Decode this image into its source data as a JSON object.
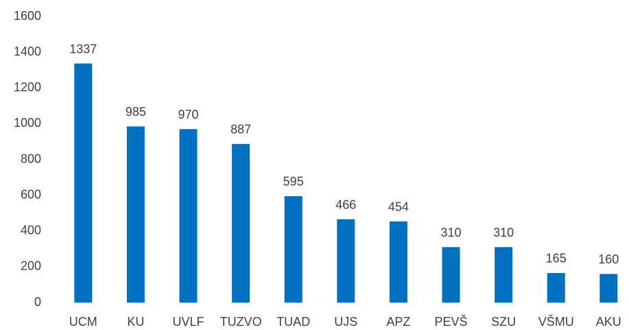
{
  "chart_data": {
    "type": "bar",
    "categories": [
      "UCM",
      "KU",
      "UVLF",
      "TUZVO",
      "TUAD",
      "UJS",
      "APZ",
      "PEVŠ",
      "SZU",
      "VŠMU",
      "AKU"
    ],
    "values": [
      1337,
      985,
      970,
      887,
      595,
      466,
      454,
      310,
      310,
      165,
      160
    ],
    "color": "#0070c0",
    "ylim": [
      0,
      1600
    ],
    "yticks": [
      0,
      200,
      400,
      600,
      800,
      1000,
      1200,
      1400,
      1600
    ],
    "grid": false
  }
}
